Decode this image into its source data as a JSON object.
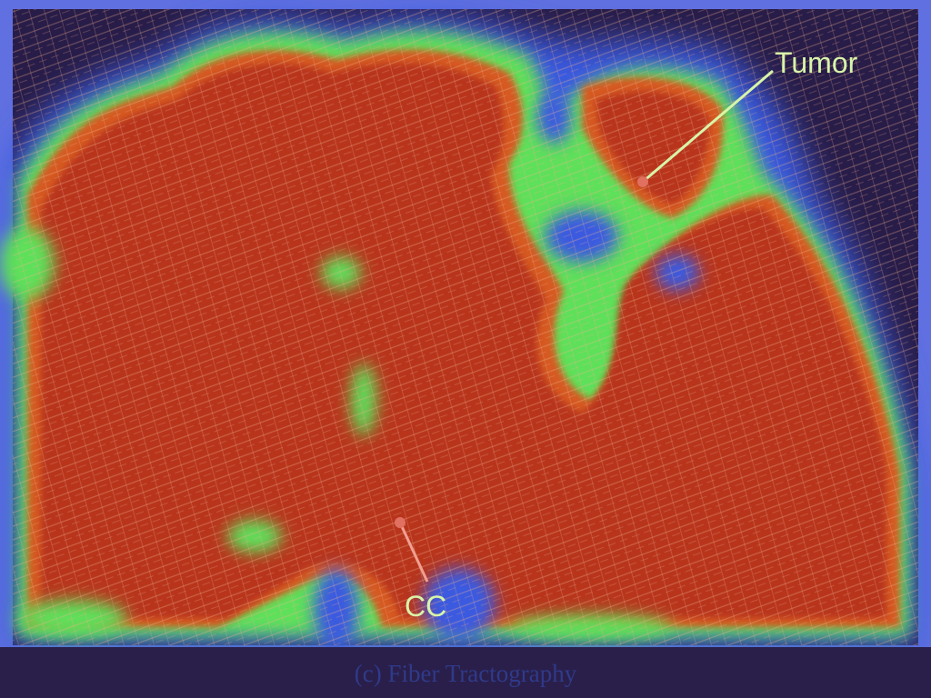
{
  "figure": {
    "caption_tag": "(c)",
    "caption_text": "Fiber Tractography"
  },
  "annotations": [
    {
      "id": "tumor",
      "label": "Tumor",
      "color": "#d8f5a8"
    },
    {
      "id": "cc",
      "label": "CC",
      "color": "#d8f5a8"
    }
  ],
  "colors": {
    "background": "#2a1f4a",
    "low": "#3a46c8",
    "mid": "#5fe05a",
    "high": "#c8401a",
    "fiber": "#f0b090"
  }
}
